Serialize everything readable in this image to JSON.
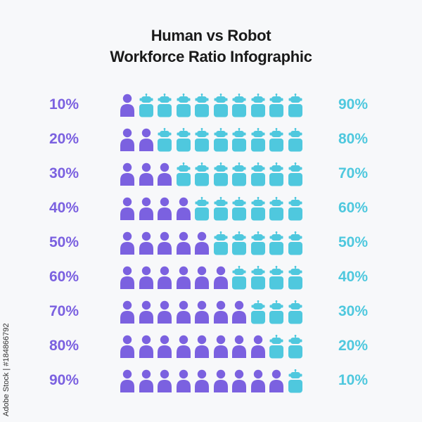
{
  "title": {
    "line1": "Human vs Robot",
    "line2": "Workforce Ratio Infographic"
  },
  "colors": {
    "human": "#7b61e0",
    "robot": "#4fc8de",
    "background": "#f7f8fa"
  },
  "icons": {
    "human": "person-icon",
    "robot": "robot-icon",
    "per_row": 10
  },
  "rows": [
    {
      "human_pct": "10%",
      "robot_pct": "90%",
      "humans": 1,
      "robots": 9
    },
    {
      "human_pct": "20%",
      "robot_pct": "80%",
      "humans": 2,
      "robots": 8
    },
    {
      "human_pct": "30%",
      "robot_pct": "70%",
      "humans": 3,
      "robots": 7
    },
    {
      "human_pct": "40%",
      "robot_pct": "60%",
      "humans": 4,
      "robots": 6
    },
    {
      "human_pct": "50%",
      "robot_pct": "50%",
      "humans": 5,
      "robots": 5
    },
    {
      "human_pct": "60%",
      "robot_pct": "40%",
      "humans": 6,
      "robots": 4
    },
    {
      "human_pct": "70%",
      "robot_pct": "30%",
      "humans": 7,
      "robots": 3
    },
    {
      "human_pct": "80%",
      "robot_pct": "20%",
      "humans": 8,
      "robots": 2
    },
    {
      "human_pct": "90%",
      "robot_pct": "10%",
      "humans": 9,
      "robots": 1
    }
  ],
  "watermark": "Adobe Stock | #184866792"
}
